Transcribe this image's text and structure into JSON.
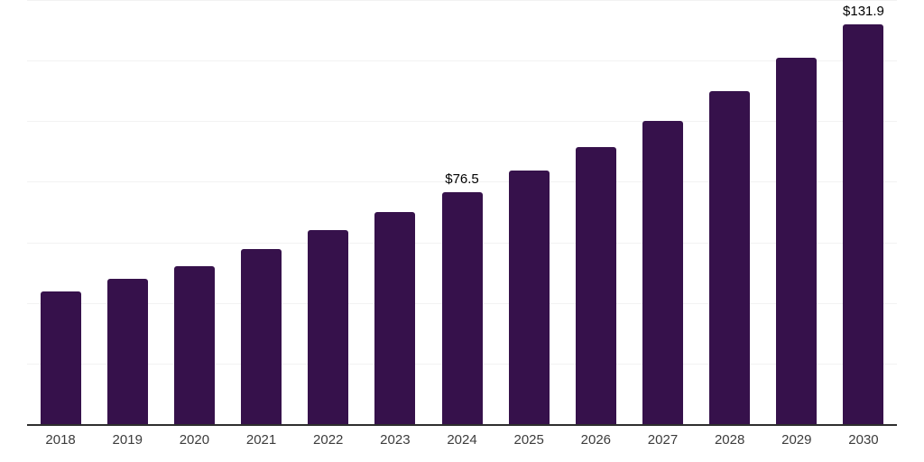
{
  "chart_data": {
    "type": "bar",
    "title": "",
    "xlabel": "",
    "ylabel": "",
    "categories": [
      "2018",
      "2019",
      "2020",
      "2021",
      "2022",
      "2023",
      "2024",
      "2025",
      "2026",
      "2027",
      "2028",
      "2029",
      "2030"
    ],
    "values": [
      43.8,
      48.0,
      52.2,
      57.9,
      64.1,
      69.9,
      76.5,
      83.6,
      91.6,
      100.2,
      110.0,
      120.8,
      131.9
    ],
    "value_labels": {
      "2024": "$76.5",
      "2030": "$131.9"
    },
    "ylim": [
      0,
      140
    ],
    "gridline_values": [
      20,
      40,
      60,
      80,
      100,
      120,
      140
    ],
    "grid": "horizontal",
    "legend": "none",
    "bar_color": "#36114B",
    "gridline_color": "#f2f2f2",
    "axis_line_color": "#2e2e2e",
    "x_label_color": "#3c3c3c",
    "value_label_color": "#000000",
    "background_color": "#ffffff"
  }
}
